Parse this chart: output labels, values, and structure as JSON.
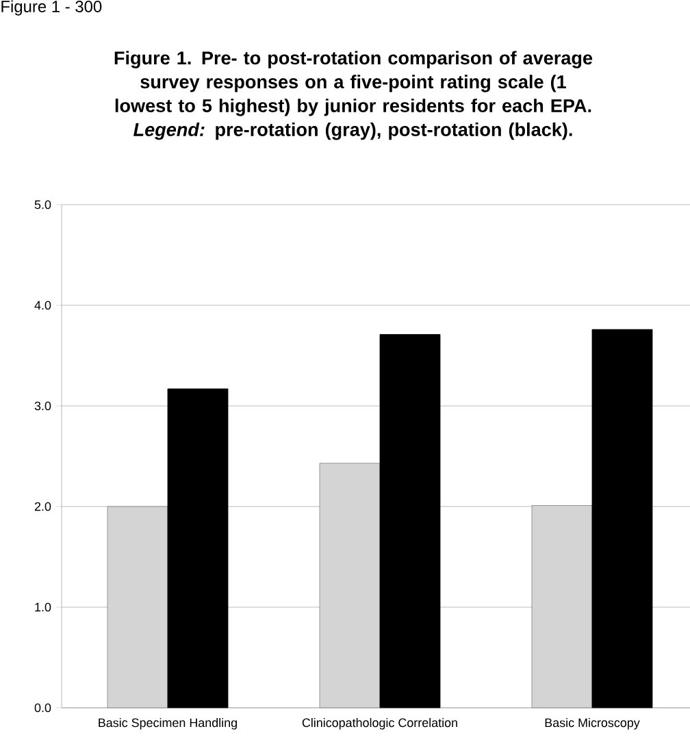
{
  "chart_data": {
    "type": "bar",
    "title": "Figure 1. Pre- to post-rotation comparison of average survey responses on a five-point rating scale (1 lowest to 5 highest) by junior residents for each EPA. *Legend:* pre-rotation (gray), post-rotation (black).",
    "annotations": [
      "Figure 1 - 300"
    ],
    "categories": [
      "Basic Specimen Handling",
      "Clinicopathologic Correlation",
      "Basic Microscopy"
    ],
    "series": [
      {
        "color": "#d4d4d4",
        "values": [
          2.0,
          2.43,
          2.01
        ]
      },
      {
        "color": "#000000",
        "values": [
          3.17,
          3.71,
          3.76
        ]
      }
    ],
    "ylim": [
      0,
      5
    ],
    "yticks": [
      {
        "value": 0,
        "label": "0.0"
      },
      {
        "value": 1,
        "label": "1.0"
      },
      {
        "value": 2,
        "label": "2.0"
      },
      {
        "value": 3,
        "label": "3.0"
      },
      {
        "value": 4,
        "label": "4.0"
      },
      {
        "value": 5,
        "label": "5.0"
      }
    ],
    "grid": "y"
  }
}
